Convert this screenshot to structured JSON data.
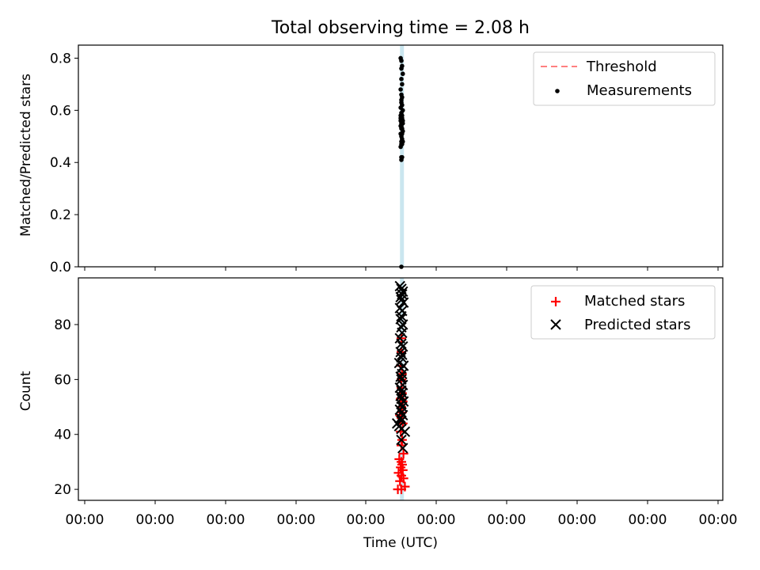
{
  "chart_data": [
    {
      "type": "scatter",
      "title": "Total observing time = 2.08 h",
      "xlabel": "",
      "ylabel": "Matched/Predicted stars",
      "xlim": [
        0,
        9
      ],
      "ylim": [
        0,
        0.85
      ],
      "y_ticks": [
        "0.0",
        "0.2",
        "0.4",
        "0.6",
        "0.8"
      ],
      "x_ticks_labeled": false,
      "grid": false,
      "legend_position": "top-right",
      "highlight_band": {
        "x": [
          4.48,
          4.53
        ],
        "color": "#add8e6"
      },
      "series": [
        {
          "name": "Threshold",
          "style": "dashed-line",
          "color": "#ff7f7f",
          "values": []
        },
        {
          "name": "Measurements",
          "style": "dot",
          "color": "#000000",
          "x": [
            4.49,
            4.5,
            4.51,
            4.5,
            4.52,
            4.5,
            4.51,
            4.49,
            4.5,
            4.51,
            4.5,
            4.51,
            4.49,
            4.52,
            4.5,
            4.51,
            4.49,
            4.5,
            4.51,
            4.52,
            4.5,
            4.49,
            4.51,
            4.5,
            4.52,
            4.49,
            4.5,
            4.51,
            4.5,
            4.52,
            4.49,
            4.5,
            4.51,
            4.5,
            4.5,
            4.51,
            4.49,
            4.52,
            4.5,
            4.51,
            4.5,
            4.49,
            4.51,
            4.5,
            4.5
          ],
          "y": [
            0.8,
            0.79,
            0.77,
            0.76,
            0.74,
            0.72,
            0.7,
            0.68,
            0.66,
            0.65,
            0.63,
            0.62,
            0.61,
            0.6,
            0.59,
            0.58,
            0.58,
            0.57,
            0.57,
            0.56,
            0.56,
            0.56,
            0.55,
            0.55,
            0.55,
            0.54,
            0.54,
            0.53,
            0.53,
            0.52,
            0.51,
            0.5,
            0.49,
            0.48,
            0.47,
            0.47,
            0.46,
            0.48,
            0.42,
            0.42,
            0.41,
            0.57,
            0.51,
            0.64,
            0.0
          ]
        }
      ]
    },
    {
      "type": "scatter",
      "title": "",
      "xlabel": "Time (UTC)",
      "ylabel": "Count",
      "xlim": [
        0,
        9
      ],
      "ylim": [
        16,
        97
      ],
      "x_ticks": [
        "00:00",
        "00:00",
        "00:00",
        "00:00",
        "00:00",
        "00:00",
        "00:00",
        "00:00",
        "00:00",
        "00:00"
      ],
      "y_ticks": [
        "20",
        "40",
        "60",
        "80"
      ],
      "grid": false,
      "legend_position": "top-right",
      "highlight_band": {
        "x": [
          4.48,
          4.53
        ],
        "color": "#add8e6"
      },
      "series": [
        {
          "name": "Matched stars",
          "style": "plus",
          "color": "#ff0000",
          "x": [
            4.45,
            4.5,
            4.55,
            4.48,
            4.53,
            4.5,
            4.46,
            4.52,
            4.49,
            4.51,
            4.5,
            4.47,
            4.53,
            4.5,
            4.51,
            4.49,
            4.52,
            4.5,
            4.48,
            4.51,
            4.5,
            4.52,
            4.49,
            4.51,
            4.5,
            4.5,
            4.51,
            4.49,
            4.5,
            4.5
          ],
          "y": [
            20,
            20,
            21,
            23,
            24,
            25,
            26,
            27,
            28,
            29,
            30,
            31,
            33,
            36,
            38,
            41,
            44,
            46,
            47,
            48,
            50,
            52,
            53,
            55,
            57,
            60,
            62,
            65,
            70,
            75
          ]
        },
        {
          "name": "Predicted stars",
          "style": "x",
          "color": "#000000",
          "x": [
            4.48,
            4.5,
            4.52,
            4.51,
            4.49,
            4.5,
            4.53,
            4.48,
            4.51,
            4.5,
            4.49,
            4.52,
            4.5,
            4.51,
            4.48,
            4.5,
            4.52,
            4.49,
            4.51,
            4.5,
            4.47,
            4.53,
            4.5,
            4.51,
            4.49,
            4.5,
            4.52,
            4.48,
            4.5,
            4.51,
            4.49,
            4.5,
            4.53,
            4.5,
            4.51,
            4.48,
            4.5,
            4.52,
            4.49,
            4.5,
            4.44,
            4.47,
            4.5,
            4.55,
            4.5,
            4.52
          ],
          "y": [
            94,
            93,
            92,
            91,
            90,
            89,
            88,
            86,
            85,
            83,
            82,
            80,
            79,
            77,
            75,
            73,
            72,
            70,
            69,
            68,
            66,
            65,
            64,
            62,
            61,
            60,
            58,
            57,
            56,
            55,
            54,
            53,
            52,
            51,
            50,
            49,
            48,
            47,
            46,
            45,
            44,
            43,
            42,
            41,
            38,
            35
          ]
        }
      ]
    }
  ]
}
